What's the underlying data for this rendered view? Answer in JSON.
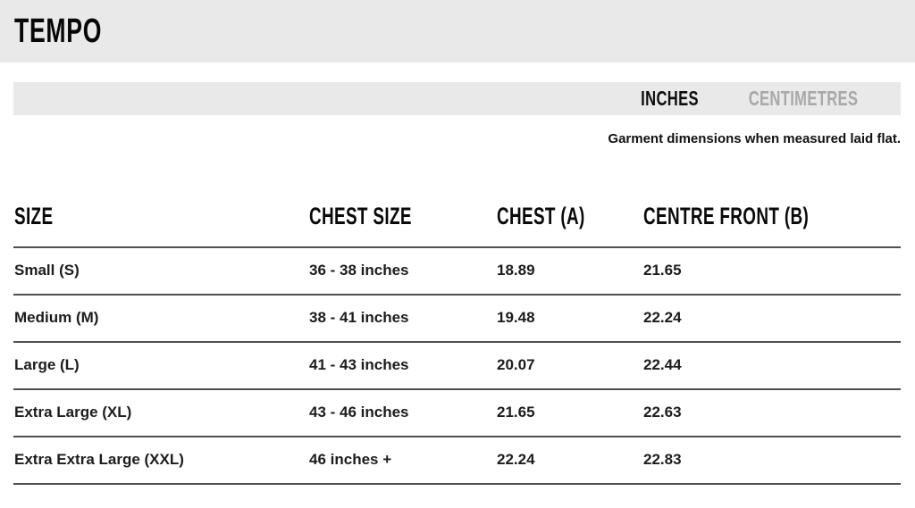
{
  "header": {
    "title": "TEMPO"
  },
  "tabs": [
    {
      "label": "INCHES",
      "active": true
    },
    {
      "label": "CENTIMETRES",
      "active": false
    }
  ],
  "note": "Garment dimensions when measured laid flat.",
  "table": {
    "columns": [
      "SIZE",
      "CHEST SIZE",
      "CHEST (A)",
      "CENTRE FRONT (B)"
    ],
    "rows": [
      {
        "size": "Small (S)",
        "chest_size": "36 - 38 inches",
        "chest_a": "18.89",
        "centre_front_b": "21.65"
      },
      {
        "size": "Medium (M)",
        "chest_size": "38 - 41 inches",
        "chest_a": "19.48",
        "centre_front_b": "22.24"
      },
      {
        "size": "Large (L)",
        "chest_size": "41 - 43 inches",
        "chest_a": "20.07",
        "centre_front_b": "22.44"
      },
      {
        "size": "Extra Large (XL)",
        "chest_size": "43 - 46 inches",
        "chest_a": "21.65",
        "centre_front_b": "22.63"
      },
      {
        "size": "Extra Extra Large (XXL)",
        "chest_size": "46 inches +",
        "chest_a": "22.24",
        "centre_front_b": "22.83"
      }
    ]
  },
  "colors": {
    "panel_bg": "#e9e9e9",
    "active_tab_text": "#0d0d0d",
    "inactive_tab_text": "#a8a8a8",
    "row_border": "#4f4f4f",
    "body_text": "#1a1a1a"
  }
}
